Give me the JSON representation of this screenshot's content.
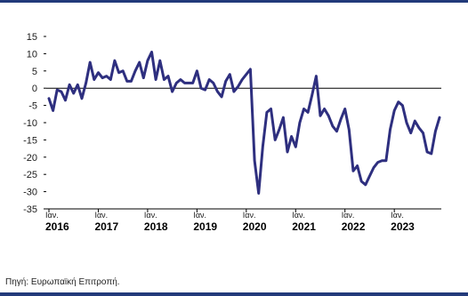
{
  "colors": {
    "series": "#2e2f7f",
    "rule": "#223a7a",
    "axis": "#000000"
  },
  "source": "Πηγή: Ευρωπαϊκή Επιτροπή.",
  "chart_data": {
    "type": "line",
    "title": "",
    "xlabel": "",
    "ylabel": "",
    "ylim": [
      -35,
      15
    ],
    "yticks": [
      -35,
      -30,
      -25,
      -20,
      -15,
      -10,
      -5,
      0,
      5,
      10,
      15
    ],
    "grid": false,
    "x_month_label": "Ιαν.",
    "years": [
      "2016",
      "2017",
      "2018",
      "2019",
      "2020",
      "2021",
      "2022",
      "2023"
    ],
    "series": [
      {
        "values": [
          -3,
          -6.5,
          -0.5,
          -1,
          -3.5,
          1,
          -1.5,
          1,
          -3,
          1.5,
          7.5,
          2.5,
          4.5,
          3,
          3.5,
          2.5,
          8,
          4.5,
          5,
          2,
          2,
          5,
          7.5,
          3,
          8,
          10.5,
          2.5,
          8,
          2.5,
          3.5,
          -1,
          1.5,
          2.5,
          1.5,
          1.5,
          1.5,
          5,
          0,
          -0.5,
          2.5,
          1.5,
          -1,
          -2.5,
          2,
          4,
          -1,
          0.5,
          2.5,
          4,
          5.5,
          -21,
          -30.5,
          -17,
          -7,
          -6,
          -15,
          -12,
          -8.5,
          -18.5,
          -14,
          -17,
          -10,
          -6,
          -7,
          -2,
          3.5,
          -8,
          -6,
          -8,
          -11,
          -12.5,
          -9,
          -6,
          -12,
          -24,
          -22.5,
          -27,
          -28,
          -25.5,
          -23,
          -21.5,
          -21,
          -21,
          -12,
          -6.5,
          -4,
          -5,
          -10,
          -13,
          -9.5,
          -11.5,
          -13,
          -18.5,
          -19,
          -12.5,
          -8.5
        ]
      }
    ]
  }
}
